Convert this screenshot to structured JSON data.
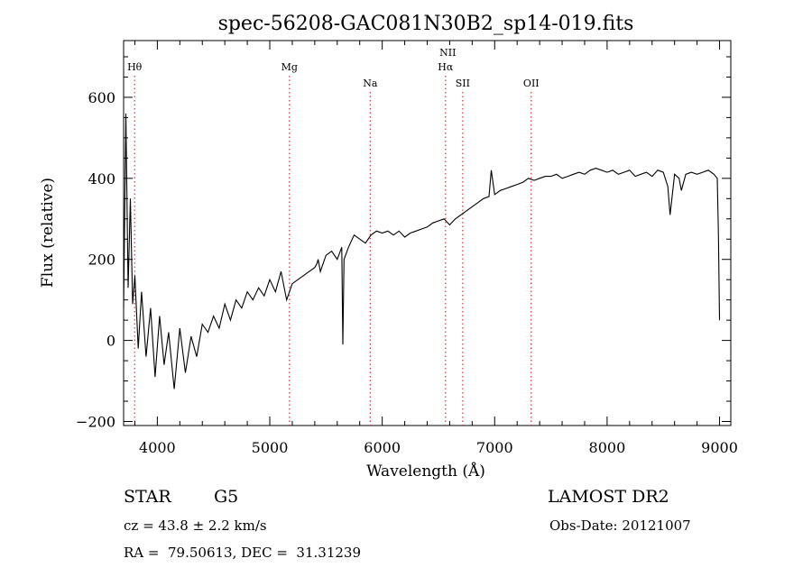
{
  "chart_data": {
    "type": "line",
    "title": "spec-56208-GAC081N30B2_sp14-019.fits",
    "xlabel": "Wavelength (Å)",
    "ylabel": "Flux (relative)",
    "xlim": [
      3700,
      9100
    ],
    "ylim": [
      -210,
      740
    ],
    "x_ticks": [
      4000,
      5000,
      6000,
      7000,
      8000,
      9000
    ],
    "x_tick_labels": [
      "4000",
      "5000",
      "6000",
      "7000",
      "8000",
      "9000"
    ],
    "y_ticks": [
      -200,
      0,
      200,
      400,
      600
    ],
    "y_tick_labels": [
      "−200",
      "0",
      "200",
      "400",
      "600"
    ],
    "line_color": "#000000",
    "marker_color": "#e0302e",
    "lines": [
      {
        "name": "Hθ",
        "wavelength": 3798,
        "label_row": 0
      },
      {
        "name": "Mg",
        "wavelength": 5175,
        "label_row": 0
      },
      {
        "name": "Na",
        "wavelength": 5893,
        "label_row": 1
      },
      {
        "name": "NII",
        "wavelength": 6583,
        "label_row": -1
      },
      {
        "name": "Hα",
        "wavelength": 6563,
        "label_row": 0
      },
      {
        "name": "SII",
        "wavelength": 6716,
        "label_row": 1
      },
      {
        "name": "OII",
        "wavelength": 7325,
        "label_row": 1
      }
    ],
    "series": [
      {
        "x": [
          3700,
          3720,
          3740,
          3760,
          3780,
          3800,
          3830,
          3860,
          3900,
          3940,
          3980,
          4020,
          4060,
          4100,
          4150,
          4200,
          4250,
          4300,
          4350,
          4400,
          4450,
          4500,
          4550,
          4600,
          4650,
          4700,
          4750,
          4800,
          4850,
          4900,
          4950,
          5000,
          5050,
          5100,
          5150,
          5200,
          5250,
          5300,
          5350,
          5400,
          5420,
          5430,
          5450,
          5500,
          5550,
          5600,
          5640,
          5650,
          5660,
          5700,
          5750,
          5800,
          5850,
          5900,
          5950,
          6000,
          6050,
          6100,
          6150,
          6200,
          6250,
          6300,
          6350,
          6400,
          6450,
          6500,
          6550,
          6600,
          6650,
          6700,
          6750,
          6800,
          6850,
          6900,
          6950,
          6970,
          7000,
          7050,
          7100,
          7150,
          7200,
          7250,
          7300,
          7350,
          7400,
          7450,
          7500,
          7550,
          7600,
          7650,
          7700,
          7750,
          7800,
          7850,
          7900,
          7950,
          8000,
          8050,
          8100,
          8150,
          8200,
          8250,
          8300,
          8350,
          8400,
          8450,
          8500,
          8540,
          8560,
          8600,
          8640,
          8660,
          8700,
          8750,
          8800,
          8850,
          8900,
          8950,
          8980,
          8990,
          9000
        ],
        "y": [
          80,
          560,
          130,
          350,
          90,
          160,
          -20,
          120,
          -40,
          80,
          -90,
          60,
          -60,
          20,
          -120,
          30,
          -80,
          10,
          -40,
          40,
          20,
          60,
          30,
          90,
          50,
          100,
          80,
          120,
          100,
          130,
          110,
          150,
          120,
          170,
          100,
          140,
          150,
          160,
          170,
          180,
          190,
          200,
          170,
          210,
          220,
          200,
          230,
          -10,
          200,
          230,
          260,
          250,
          240,
          260,
          270,
          265,
          270,
          260,
          270,
          255,
          265,
          270,
          275,
          280,
          290,
          295,
          300,
          285,
          300,
          310,
          320,
          330,
          340,
          350,
          355,
          420,
          360,
          370,
          375,
          380,
          385,
          390,
          400,
          395,
          400,
          405,
          405,
          410,
          400,
          405,
          410,
          415,
          410,
          420,
          425,
          420,
          415,
          420,
          410,
          415,
          420,
          405,
          410,
          415,
          405,
          420,
          415,
          380,
          310,
          410,
          400,
          370,
          410,
          415,
          410,
          415,
          420,
          410,
          400,
          260,
          50
        ]
      }
    ]
  },
  "info": {
    "object_class": "STAR",
    "subclass": "G5",
    "survey": "LAMOST DR2",
    "cz": "cz = 43.8 ± 2.2 km/s",
    "obs_date": "Obs-Date: 20121007",
    "coords": "RA =  79.50613, DEC =  31.31239"
  }
}
